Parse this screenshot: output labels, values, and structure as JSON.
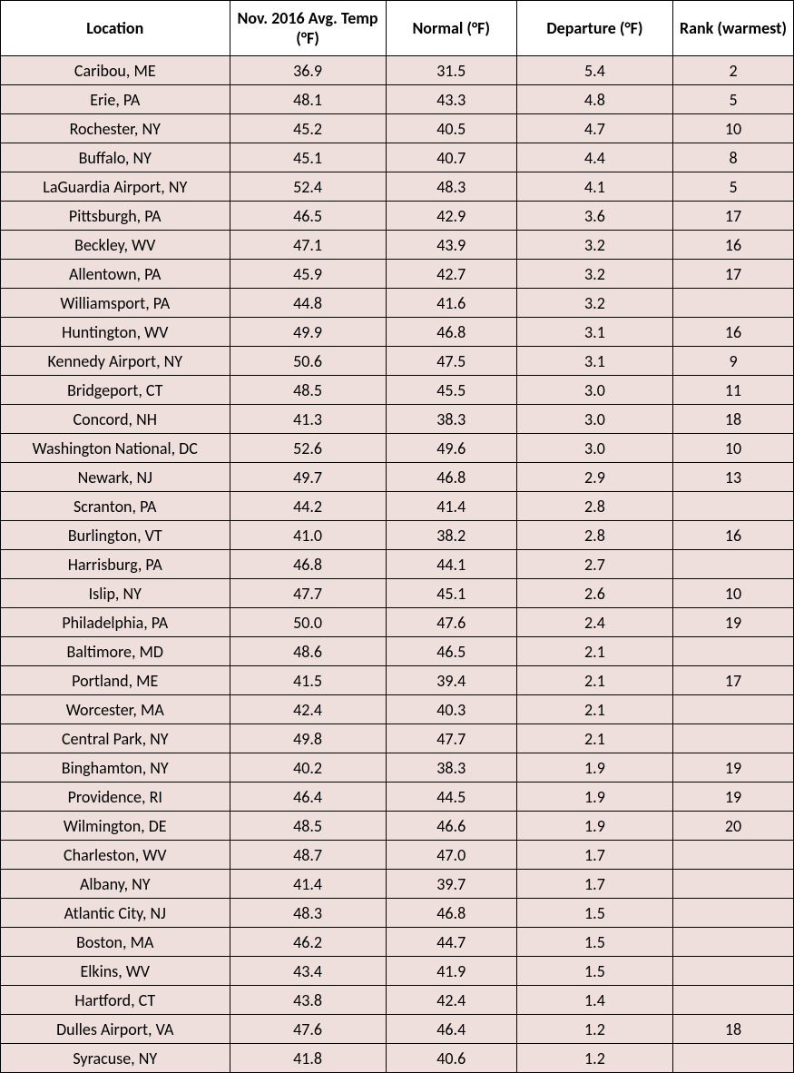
{
  "table": {
    "headers": {
      "location": "Location",
      "avg_temp": "Nov. 2016 Avg. Temp (°F)",
      "normal": "Normal (°F)",
      "departure": "Departure (°F)",
      "rank": "Rank (warmest)"
    },
    "rows": [
      {
        "location": "Caribou, ME",
        "avg_temp": "36.9",
        "normal": "31.5",
        "departure": "5.4",
        "rank": "2"
      },
      {
        "location": "Erie, PA",
        "avg_temp": "48.1",
        "normal": "43.3",
        "departure": "4.8",
        "rank": "5"
      },
      {
        "location": "Rochester, NY",
        "avg_temp": "45.2",
        "normal": "40.5",
        "departure": "4.7",
        "rank": "10"
      },
      {
        "location": "Buffalo, NY",
        "avg_temp": "45.1",
        "normal": "40.7",
        "departure": "4.4",
        "rank": "8"
      },
      {
        "location": "LaGuardia Airport, NY",
        "avg_temp": "52.4",
        "normal": "48.3",
        "departure": "4.1",
        "rank": "5"
      },
      {
        "location": "Pittsburgh, PA",
        "avg_temp": "46.5",
        "normal": "42.9",
        "departure": "3.6",
        "rank": "17"
      },
      {
        "location": "Beckley, WV",
        "avg_temp": "47.1",
        "normal": "43.9",
        "departure": "3.2",
        "rank": "16"
      },
      {
        "location": "Allentown, PA",
        "avg_temp": "45.9",
        "normal": "42.7",
        "departure": "3.2",
        "rank": "17"
      },
      {
        "location": "Williamsport, PA",
        "avg_temp": "44.8",
        "normal": "41.6",
        "departure": "3.2",
        "rank": ""
      },
      {
        "location": "Huntington, WV",
        "avg_temp": "49.9",
        "normal": "46.8",
        "departure": "3.1",
        "rank": "16"
      },
      {
        "location": "Kennedy Airport, NY",
        "avg_temp": "50.6",
        "normal": "47.5",
        "departure": "3.1",
        "rank": "9"
      },
      {
        "location": "Bridgeport, CT",
        "avg_temp": "48.5",
        "normal": "45.5",
        "departure": "3.0",
        "rank": "11"
      },
      {
        "location": "Concord, NH",
        "avg_temp": "41.3",
        "normal": "38.3",
        "departure": "3.0",
        "rank": "18"
      },
      {
        "location": "Washington National, DC",
        "avg_temp": "52.6",
        "normal": "49.6",
        "departure": "3.0",
        "rank": "10"
      },
      {
        "location": "Newark, NJ",
        "avg_temp": "49.7",
        "normal": "46.8",
        "departure": "2.9",
        "rank": "13"
      },
      {
        "location": "Scranton, PA",
        "avg_temp": "44.2",
        "normal": "41.4",
        "departure": "2.8",
        "rank": ""
      },
      {
        "location": "Burlington, VT",
        "avg_temp": "41.0",
        "normal": "38.2",
        "departure": "2.8",
        "rank": "16"
      },
      {
        "location": "Harrisburg, PA",
        "avg_temp": "46.8",
        "normal": "44.1",
        "departure": "2.7",
        "rank": ""
      },
      {
        "location": "Islip, NY",
        "avg_temp": "47.7",
        "normal": "45.1",
        "departure": "2.6",
        "rank": "10"
      },
      {
        "location": "Philadelphia, PA",
        "avg_temp": "50.0",
        "normal": "47.6",
        "departure": "2.4",
        "rank": "19"
      },
      {
        "location": "Baltimore, MD",
        "avg_temp": "48.6",
        "normal": "46.5",
        "departure": "2.1",
        "rank": ""
      },
      {
        "location": "Portland, ME",
        "avg_temp": "41.5",
        "normal": "39.4",
        "departure": "2.1",
        "rank": "17"
      },
      {
        "location": "Worcester, MA",
        "avg_temp": "42.4",
        "normal": "40.3",
        "departure": "2.1",
        "rank": ""
      },
      {
        "location": "Central Park, NY",
        "avg_temp": "49.8",
        "normal": "47.7",
        "departure": "2.1",
        "rank": ""
      },
      {
        "location": "Binghamton, NY",
        "avg_temp": "40.2",
        "normal": "38.3",
        "departure": "1.9",
        "rank": "19"
      },
      {
        "location": "Providence, RI",
        "avg_temp": "46.4",
        "normal": "44.5",
        "departure": "1.9",
        "rank": "19"
      },
      {
        "location": "Wilmington, DE",
        "avg_temp": "48.5",
        "normal": "46.6",
        "departure": "1.9",
        "rank": "20"
      },
      {
        "location": "Charleston, WV",
        "avg_temp": "48.7",
        "normal": "47.0",
        "departure": "1.7",
        "rank": ""
      },
      {
        "location": "Albany, NY",
        "avg_temp": "41.4",
        "normal": "39.7",
        "departure": "1.7",
        "rank": ""
      },
      {
        "location": "Atlantic City, NJ",
        "avg_temp": "48.3",
        "normal": "46.8",
        "departure": "1.5",
        "rank": ""
      },
      {
        "location": "Boston, MA",
        "avg_temp": "46.2",
        "normal": "44.7",
        "departure": "1.5",
        "rank": ""
      },
      {
        "location": "Elkins, WV",
        "avg_temp": "43.4",
        "normal": "41.9",
        "departure": "1.5",
        "rank": ""
      },
      {
        "location": "Hartford, CT",
        "avg_temp": "43.8",
        "normal": "42.4",
        "departure": "1.4",
        "rank": ""
      },
      {
        "location": "Dulles Airport, VA",
        "avg_temp": "47.6",
        "normal": "46.4",
        "departure": "1.2",
        "rank": "18"
      },
      {
        "location": "Syracuse, NY",
        "avg_temp": "41.8",
        "normal": "40.6",
        "departure": "1.2",
        "rank": ""
      }
    ]
  }
}
